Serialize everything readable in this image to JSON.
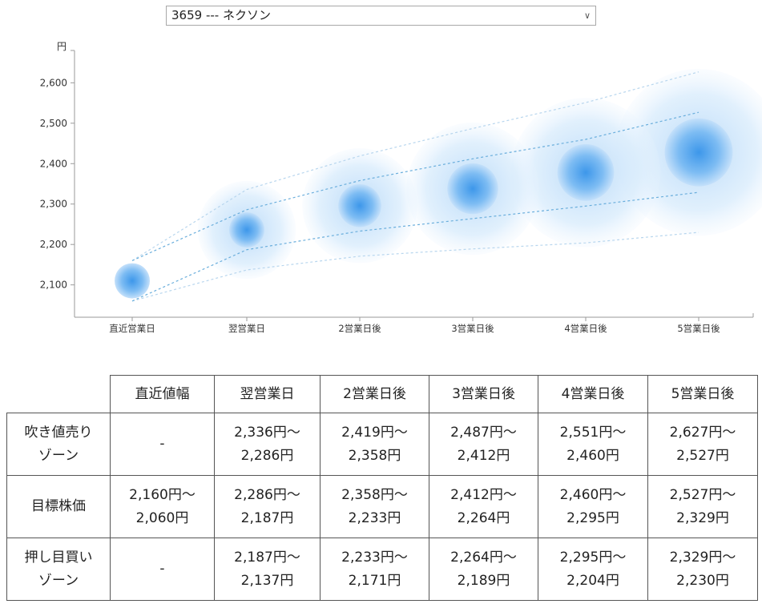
{
  "selector": {
    "value": "3659 --- ネクソン"
  },
  "chart_data": {
    "type": "bubble",
    "ylabel": "円",
    "ylim": [
      2020,
      2680
    ],
    "yticks": [
      "2,100",
      "2,200",
      "2,300",
      "2,400",
      "2,500",
      "2,600"
    ],
    "yticks_values": [
      2100,
      2200,
      2300,
      2400,
      2500,
      2600
    ],
    "categories": [
      "直近営業日",
      "翌営業日",
      "2営業日後",
      "3営業日後",
      "4営業日後",
      "5営業日後"
    ],
    "center": [
      2110,
      2236,
      2296,
      2338,
      2378,
      2428
    ],
    "inner_range": [
      [
        2060,
        2160
      ],
      [
        2187,
        2286
      ],
      [
        2233,
        2358
      ],
      [
        2264,
        2412
      ],
      [
        2295,
        2460
      ],
      [
        2329,
        2527
      ]
    ],
    "outer_range": [
      [
        2060,
        2160
      ],
      [
        2137,
        2336
      ],
      [
        2171,
        2419
      ],
      [
        2189,
        2487
      ],
      [
        2204,
        2551
      ],
      [
        2230,
        2627
      ]
    ],
    "colors": {
      "bubble_core": "#4da3ee",
      "bubble_halo": "#cfe6fb",
      "line_inner": "#6aaedc",
      "line_outer": "#b8d6ee"
    }
  },
  "table": {
    "headers": [
      "",
      "直近値幅",
      "翌営業日",
      "2営業日後",
      "3営業日後",
      "4営業日後",
      "5営業日後"
    ],
    "rows": [
      {
        "label": [
          "吹き値売り",
          "ゾーン"
        ],
        "cells": [
          [
            "-"
          ],
          [
            "2,336円〜",
            "2,286円"
          ],
          [
            "2,419円〜",
            "2,358円"
          ],
          [
            "2,487円〜",
            "2,412円"
          ],
          [
            "2,551円〜",
            "2,460円"
          ],
          [
            "2,627円〜",
            "2,527円"
          ]
        ]
      },
      {
        "label": [
          "目標株価"
        ],
        "cells": [
          [
            "2,160円〜",
            "2,060円"
          ],
          [
            "2,286円〜",
            "2,187円"
          ],
          [
            "2,358円〜",
            "2,233円"
          ],
          [
            "2,412円〜",
            "2,264円"
          ],
          [
            "2,460円〜",
            "2,295円"
          ],
          [
            "2,527円〜",
            "2,329円"
          ]
        ]
      },
      {
        "label": [
          "押し目買い",
          "ゾーン"
        ],
        "cells": [
          [
            "-"
          ],
          [
            "2,187円〜",
            "2,137円"
          ],
          [
            "2,233円〜",
            "2,171円"
          ],
          [
            "2,264円〜",
            "2,189円"
          ],
          [
            "2,295円〜",
            "2,204円"
          ],
          [
            "2,329円〜",
            "2,230円"
          ]
        ]
      }
    ]
  }
}
